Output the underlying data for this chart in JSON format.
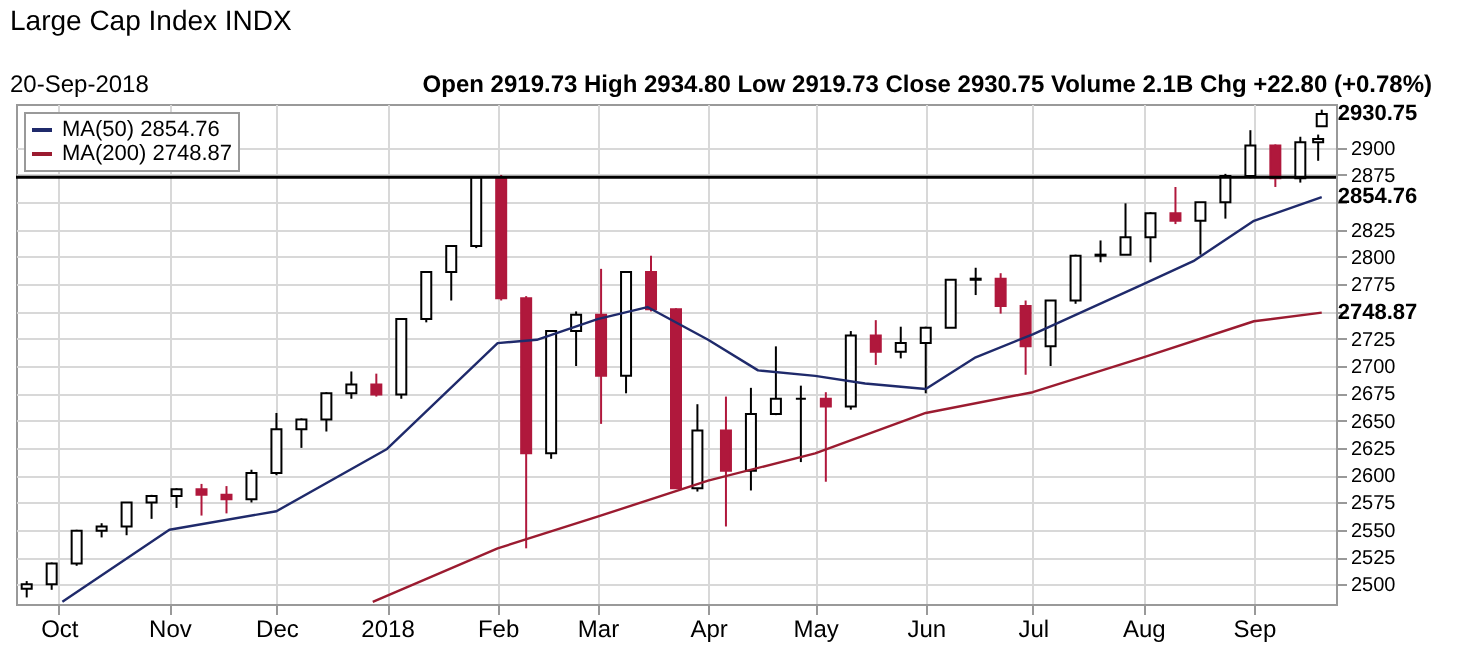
{
  "chart_data": {
    "type": "candlestick",
    "title": "Large Cap Index INDX",
    "annotations": [
      "20-Sep-2018",
      "Open 2919.73  High 2934.80  Low 2919.73  Close 2930.75  Volume 2.1B  Chg +22.80 (+0.78%)",
      {
        "text": "2930.75",
        "x": "2018-09-20",
        "y": 2930.75
      },
      {
        "text": "2854.76",
        "x": "2018-09-20",
        "y": 2854.76
      },
      {
        "text": "2748.87",
        "x": "2018-09-20",
        "y": 2748.87
      }
    ],
    "x": [
      "2017-09-22",
      "2017-09-29",
      "2017-10-06",
      "2017-10-13",
      "2017-10-20",
      "2017-10-27",
      "2017-11-03",
      "2017-11-10",
      "2017-11-17",
      "2017-11-24",
      "2017-12-01",
      "2017-12-08",
      "2017-12-15",
      "2017-12-22",
      "2017-12-29",
      "2018-01-05",
      "2018-01-12",
      "2018-01-19",
      "2018-01-26",
      "2018-02-02",
      "2018-02-09",
      "2018-02-16",
      "2018-02-23",
      "2018-03-02",
      "2018-03-09",
      "2018-03-16",
      "2018-03-23",
      "2018-03-29",
      "2018-04-06",
      "2018-04-13",
      "2018-04-20",
      "2018-04-27",
      "2018-05-04",
      "2018-05-11",
      "2018-05-18",
      "2018-05-25",
      "2018-06-01",
      "2018-06-08",
      "2018-06-15",
      "2018-06-22",
      "2018-06-29",
      "2018-07-06",
      "2018-07-13",
      "2018-07-20",
      "2018-07-27",
      "2018-08-03",
      "2018-08-10",
      "2018-08-17",
      "2018-08-24",
      "2018-08-31",
      "2018-09-07",
      "2018-09-14",
      "2018-09-19",
      "2018-09-20"
    ],
    "ohlc": [
      [
        2496,
        2503,
        2488,
        2500
      ],
      [
        2500,
        2520,
        2495,
        2519
      ],
      [
        2519,
        2550,
        2517,
        2549
      ],
      [
        2549,
        2556,
        2543,
        2553
      ],
      [
        2553,
        2575,
        2545,
        2575
      ],
      [
        2575,
        2582,
        2560,
        2581
      ],
      [
        2581,
        2588,
        2570,
        2587
      ],
      [
        2587,
        2592,
        2563,
        2582
      ],
      [
        2582,
        2590,
        2565,
        2578
      ],
      [
        2578,
        2605,
        2575,
        2602
      ],
      [
        2602,
        2657,
        2600,
        2642
      ],
      [
        2642,
        2652,
        2625,
        2651
      ],
      [
        2651,
        2676,
        2640,
        2675
      ],
      [
        2675,
        2695,
        2670,
        2683
      ],
      [
        2683,
        2693,
        2672,
        2674
      ],
      [
        2674,
        2743,
        2670,
        2743
      ],
      [
        2743,
        2787,
        2740,
        2786
      ],
      [
        2786,
        2810,
        2760,
        2810
      ],
      [
        2810,
        2873,
        2808,
        2873
      ],
      [
        2873,
        2875,
        2760,
        2762
      ],
      [
        2762,
        2764,
        2533,
        2620
      ],
      [
        2620,
        2733,
        2615,
        2732
      ],
      [
        2732,
        2750,
        2700,
        2747
      ],
      [
        2747,
        2789,
        2647,
        2691
      ],
      [
        2691,
        2786,
        2675,
        2786
      ],
      [
        2786,
        2801,
        2750,
        2752
      ],
      [
        2752,
        2753,
        2588,
        2588
      ],
      [
        2588,
        2665,
        2585,
        2641
      ],
      [
        2641,
        2672,
        2553,
        2604
      ],
      [
        2604,
        2680,
        2586,
        2656
      ],
      [
        2656,
        2718,
        2655,
        2670
      ],
      [
        2670,
        2682,
        2612,
        2670
      ],
      [
        2670,
        2676,
        2594,
        2663
      ],
      [
        2663,
        2732,
        2660,
        2728
      ],
      [
        2728,
        2742,
        2701,
        2713
      ],
      [
        2713,
        2736,
        2707,
        2721
      ],
      [
        2721,
        2736,
        2675,
        2735
      ],
      [
        2735,
        2779,
        2735,
        2779
      ],
      [
        2779,
        2790,
        2765,
        2780
      ],
      [
        2780,
        2785,
        2748,
        2755
      ],
      [
        2755,
        2760,
        2692,
        2718
      ],
      [
        2718,
        2760,
        2700,
        2760
      ],
      [
        2760,
        2802,
        2757,
        2801
      ],
      [
        2801,
        2815,
        2795,
        2802
      ],
      [
        2802,
        2849,
        2802,
        2818
      ],
      [
        2818,
        2841,
        2795,
        2840
      ],
      [
        2840,
        2864,
        2830,
        2833
      ],
      [
        2833,
        2850,
        2802,
        2850
      ],
      [
        2850,
        2876,
        2835,
        2874
      ],
      [
        2874,
        2916,
        2872,
        2902
      ],
      [
        2902,
        2903,
        2864,
        2872
      ],
      [
        2872,
        2910,
        2868,
        2905
      ],
      [
        2905,
        2912,
        2888,
        2908
      ],
      [
        2919.73,
        2934.8,
        2919.73,
        2930.75
      ]
    ],
    "series": [
      {
        "name": "MA(50) 2854.76",
        "type": "line",
        "color": "#1f2a6b",
        "x": [
          "2017-10-02",
          "2017-11-01",
          "2017-12-01",
          "2018-01-01",
          "2018-02-01",
          "2018-02-12",
          "2018-03-01",
          "2018-03-15",
          "2018-04-01",
          "2018-04-15",
          "2018-05-01",
          "2018-05-15",
          "2018-06-01",
          "2018-06-15",
          "2018-07-01",
          "2018-08-01",
          "2018-08-15",
          "2018-09-01",
          "2018-09-20"
        ],
        "values": [
          2484,
          2550,
          2567,
          2624,
          2721,
          2724,
          2743,
          2754,
          2724,
          2696,
          2691,
          2684,
          2679,
          2708,
          2729,
          2775,
          2796,
          2833,
          2854.76
        ]
      },
      {
        "name": "MA(200) 2748.87",
        "type": "line",
        "color": "#9b1b30",
        "x": [
          "2017-12-28",
          "2018-02-01",
          "2018-03-01",
          "2018-04-01",
          "2018-05-01",
          "2018-06-01",
          "2018-07-01",
          "2018-08-01",
          "2018-09-01",
          "2018-09-20"
        ],
        "values": [
          2484,
          2533,
          2562,
          2595,
          2620,
          2657,
          2676,
          2708,
          2741,
          2748.87
        ]
      }
    ],
    "xlim": [
      "2017-09-19",
      "2018-09-24"
    ],
    "xticks": [
      {
        "value": "2017-10-01",
        "label": "Oct"
      },
      {
        "value": "2017-11-01",
        "label": "Nov"
      },
      {
        "value": "2017-12-01",
        "label": "Dec"
      },
      {
        "value": "2018-01-01",
        "label": "2018"
      },
      {
        "value": "2018-02-01",
        "label": "Feb"
      },
      {
        "value": "2018-03-01",
        "label": "Mar"
      },
      {
        "value": "2018-04-01",
        "label": "Apr"
      },
      {
        "value": "2018-05-01",
        "label": "May"
      },
      {
        "value": "2018-06-01",
        "label": "Jun"
      },
      {
        "value": "2018-07-01",
        "label": "Jul"
      },
      {
        "value": "2018-08-01",
        "label": "Aug"
      },
      {
        "value": "2018-09-01",
        "label": "Sep"
      }
    ],
    "ylim": [
      2482,
      2940
    ],
    "yticks": [
      2500,
      2525,
      2550,
      2575,
      2600,
      2625,
      2650,
      2675,
      2700,
      2725,
      {
        "value": 2750,
        "label": null
      },
      2775,
      2800,
      2825,
      {
        "value": 2850,
        "label": null
      },
      2875,
      2900
    ],
    "ref_lines": [
      {
        "axis": "y",
        "value": 2873,
        "color": "#000000"
      }
    ],
    "grid": true,
    "legend": "top left"
  }
}
